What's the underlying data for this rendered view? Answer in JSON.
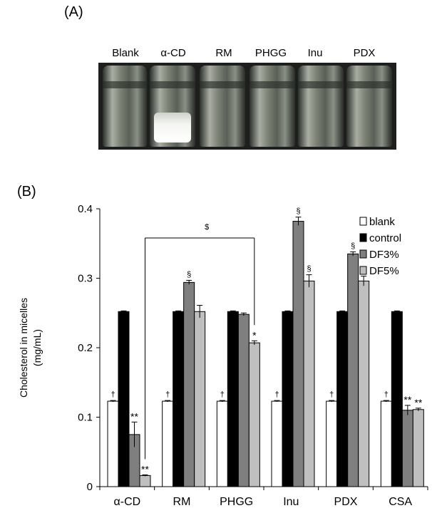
{
  "panel_a": {
    "label": "(A)",
    "vial_labels": [
      "Blank",
      "α-CD",
      "RM",
      "PHGG",
      "Inu",
      "PDX"
    ]
  },
  "panel_b": {
    "label": "(B)"
  },
  "colors": {
    "blank": "#ffffff",
    "control": "#000000",
    "df3": "#7f7f7f",
    "df5": "#bfbfbf"
  },
  "chart_data": {
    "type": "bar",
    "ylabel_line1": "Cholesterol in micelles",
    "ylabel_line2": "(mg/mL)",
    "ylim": [
      0,
      0.4
    ],
    "yticks": [
      0,
      0.1,
      0.2,
      0.3,
      0.4
    ],
    "ytick_labels": [
      "0",
      "0.1",
      "0.2",
      "0.3",
      "0.4"
    ],
    "categories": [
      "α-CD",
      "RM",
      "PHGG",
      "Inu",
      "PDX",
      "CSA"
    ],
    "series": [
      {
        "name": "blank",
        "values": [
          0.123,
          0.123,
          0.123,
          0.123,
          0.123,
          0.123
        ],
        "errors": [
          0.001,
          0.001,
          0.001,
          0.001,
          0.001,
          0.001
        ]
      },
      {
        "name": "control",
        "values": [
          0.252,
          0.252,
          0.252,
          0.252,
          0.252,
          0.252
        ],
        "errors": [
          0.001,
          0.001,
          0.001,
          0.001,
          0.001,
          0.001
        ]
      },
      {
        "name": "DF3%",
        "values": [
          0.075,
          0.294,
          0.248,
          0.382,
          0.335,
          0.11
        ],
        "errors": [
          0.018,
          0.003,
          0.002,
          0.006,
          0.003,
          0.007
        ]
      },
      {
        "name": "DF5%",
        "values": [
          0.016,
          0.252,
          0.207,
          0.296,
          0.296,
          0.111
        ],
        "errors": [
          0.001,
          0.009,
          0.003,
          0.009,
          0.007,
          0.002
        ]
      }
    ],
    "annotations": [
      {
        "text": "†",
        "cat": 0,
        "series": 0
      },
      {
        "text": "†",
        "cat": 1,
        "series": 0
      },
      {
        "text": "†",
        "cat": 2,
        "series": 0
      },
      {
        "text": "†",
        "cat": 3,
        "series": 0
      },
      {
        "text": "†",
        "cat": 4,
        "series": 0
      },
      {
        "text": "†",
        "cat": 5,
        "series": 0
      },
      {
        "text": "**",
        "cat": 0,
        "series": 2
      },
      {
        "text": "**",
        "cat": 0,
        "series": 3
      },
      {
        "text": "§",
        "cat": 1,
        "series": 2
      },
      {
        "text": "*",
        "cat": 2,
        "series": 3
      },
      {
        "text": "§",
        "cat": 3,
        "series": 2
      },
      {
        "text": "§",
        "cat": 3,
        "series": 3
      },
      {
        "text": "§",
        "cat": 4,
        "series": 2
      },
      {
        "text": "§",
        "cat": 4,
        "series": 3
      },
      {
        "text": "**",
        "cat": 5,
        "series": 2
      },
      {
        "text": "**",
        "cat": 5,
        "series": 3
      }
    ],
    "bracket": {
      "text": "$",
      "from_cat": 0,
      "to_cat": 2,
      "value": 0.358
    },
    "legend": {
      "position": "top-right",
      "entries": [
        "blank",
        "control",
        "DF3%",
        "DF5%"
      ]
    }
  }
}
